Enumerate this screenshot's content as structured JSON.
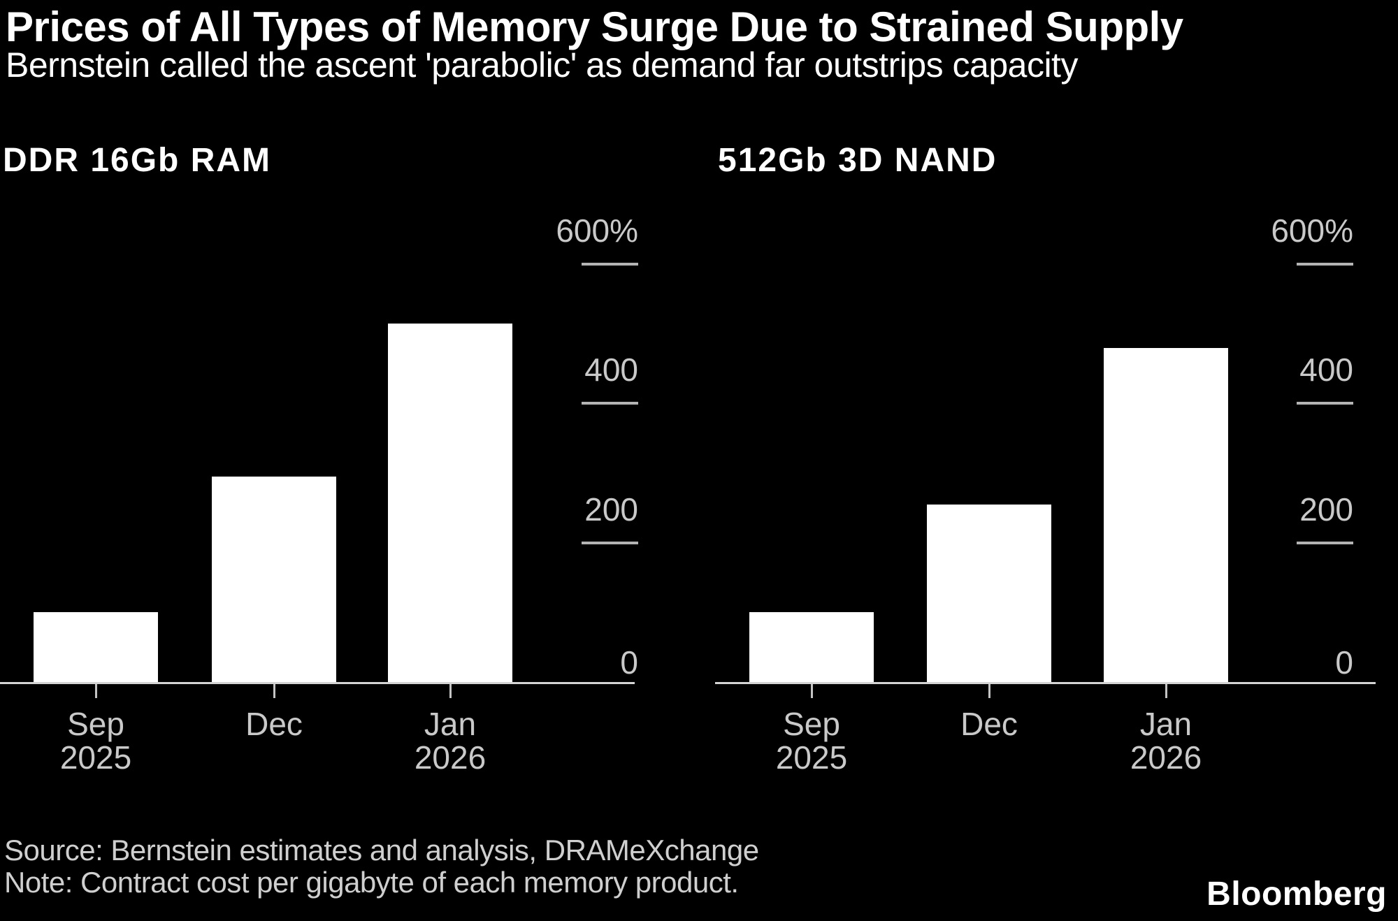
{
  "header": {
    "title": "Prices of All Types of Memory Surge Due to Strained Supply",
    "subtitle": "Bernstein called the ascent 'parabolic' as demand far outstrips capacity"
  },
  "footer": {
    "source": "Source: Bernstein estimates and analysis, DRAMeXchange",
    "note": "Note: Contract cost per gigabyte of each memory product.",
    "brand": "Bloomberg"
  },
  "colors": {
    "background": "#000000",
    "bar": "#ffffff",
    "axis_line": "#d4d4d4",
    "tick_line": "#b3b3b3",
    "label_text": "#c9c9c9",
    "heading_text": "#ffffff"
  },
  "chart_data": [
    {
      "type": "bar",
      "title": "DDR 16Gb RAM",
      "categories": [
        [
          "Sep",
          "2025"
        ],
        [
          "Dec"
        ],
        [
          "Jan",
          "2026"
        ]
      ],
      "values": [
        100,
        295,
        515
      ],
      "unit": "%",
      "ylabel": "",
      "xlabel": "",
      "ylim": [
        0,
        600
      ],
      "yticks": [
        {
          "value": 0,
          "label": "0",
          "line": false
        },
        {
          "value": 200,
          "label": "200",
          "line": true
        },
        {
          "value": 400,
          "label": "400",
          "line": true
        },
        {
          "value": 600,
          "label": "600%",
          "line": true
        }
      ],
      "grid": "off",
      "legend": "none",
      "axis_side": "right",
      "bar_color": "#ffffff"
    },
    {
      "type": "bar",
      "title": "512Gb 3D NAND",
      "categories": [
        [
          "Sep",
          "2025"
        ],
        [
          "Dec"
        ],
        [
          "Jan",
          "2026"
        ]
      ],
      "values": [
        100,
        255,
        480
      ],
      "unit": "%",
      "ylabel": "",
      "xlabel": "",
      "ylim": [
        0,
        600
      ],
      "yticks": [
        {
          "value": 0,
          "label": "0",
          "line": false
        },
        {
          "value": 200,
          "label": "200",
          "line": true
        },
        {
          "value": 400,
          "label": "400",
          "line": true
        },
        {
          "value": 600,
          "label": "600%",
          "line": true
        }
      ],
      "grid": "off",
      "legend": "none",
      "axis_side": "right",
      "bar_color": "#ffffff"
    }
  ]
}
